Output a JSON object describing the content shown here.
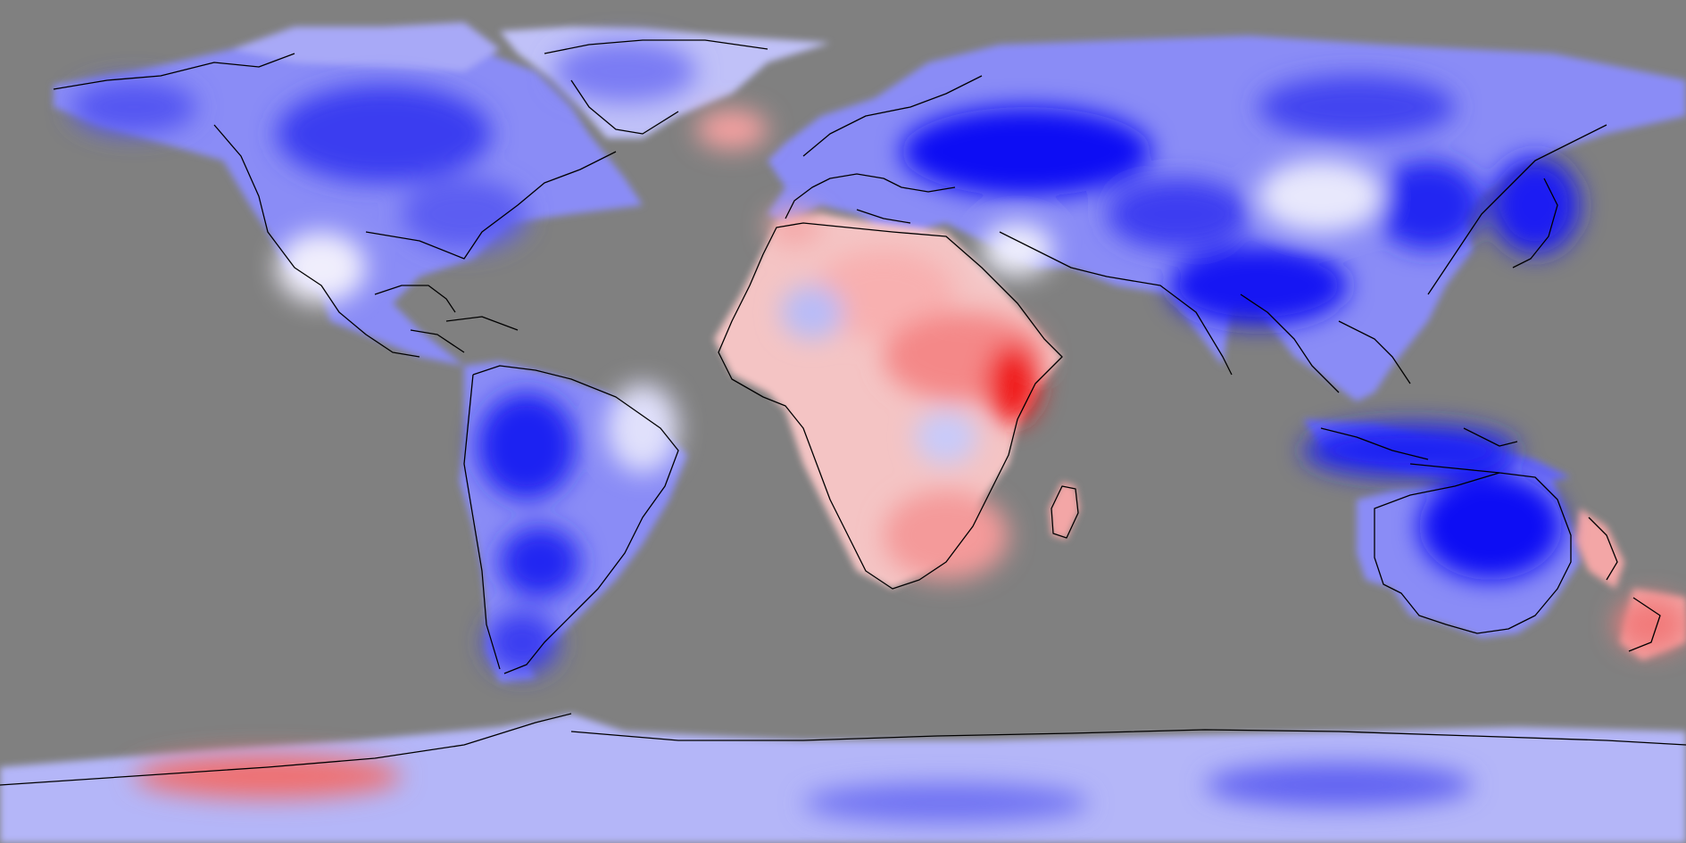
{
  "map": {
    "type": "anomaly-heatmap",
    "projection": "equirectangular",
    "ocean_fill": "#808080",
    "palette": {
      "strong_negative": "#0000ff",
      "neutral": "#ffffff",
      "strong_positive": "#ff0000"
    },
    "legend": "none",
    "title": ""
  },
  "regions": [
    {
      "name": "north-america",
      "anomaly": "negative",
      "intensity": 0.7
    },
    {
      "name": "greenland",
      "anomaly": "negative",
      "intensity": 0.5
    },
    {
      "name": "south-america",
      "anomaly": "negative",
      "intensity": 0.8
    },
    {
      "name": "europe",
      "anomaly": "negative",
      "intensity": 0.5
    },
    {
      "name": "northern-asia",
      "anomaly": "negative",
      "intensity": 0.9
    },
    {
      "name": "south-asia",
      "anomaly": "negative",
      "intensity": 0.9
    },
    {
      "name": "east-asia",
      "anomaly": "negative",
      "intensity": 0.9
    },
    {
      "name": "maritime-continent",
      "anomaly": "negative",
      "intensity": 0.9
    },
    {
      "name": "australia",
      "anomaly": "negative",
      "intensity": 0.9
    },
    {
      "name": "north-africa",
      "anomaly": "positive",
      "intensity": 0.3
    },
    {
      "name": "east-africa",
      "anomaly": "positive",
      "intensity": 1.0
    },
    {
      "name": "southern-africa",
      "anomaly": "positive",
      "intensity": 0.5
    },
    {
      "name": "madagascar",
      "anomaly": "positive",
      "intensity": 0.5
    },
    {
      "name": "new-zealand",
      "anomaly": "positive",
      "intensity": 0.5
    },
    {
      "name": "west-antarctica",
      "anomaly": "positive",
      "intensity": 0.6
    },
    {
      "name": "east-antarctica",
      "anomaly": "negative",
      "intensity": 0.5
    }
  ]
}
